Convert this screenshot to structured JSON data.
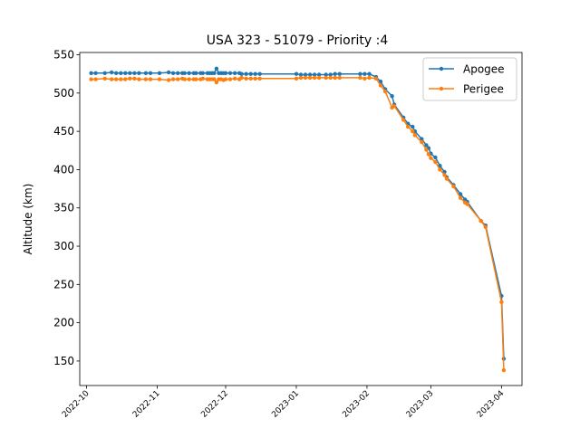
{
  "chart_data": {
    "type": "line",
    "title": "USA 323 - 51079 - Priority :4",
    "xlabel": "",
    "ylabel": "Altitude (km)",
    "xlim": [
      "2022-09-28",
      "2023-04-10"
    ],
    "ylim": [
      118,
      553
    ],
    "x_ticks": [
      "2022-10-01",
      "2022-11-01",
      "2022-12-01",
      "2023-01-01",
      "2023-02-01",
      "2023-03-01",
      "2023-04-01"
    ],
    "x_tick_labels": [
      "2022-10",
      "2022-11",
      "2022-12",
      "2023-01",
      "2023-02",
      "2023-03",
      "2023-04"
    ],
    "y_ticks": [
      150,
      200,
      250,
      300,
      350,
      400,
      450,
      500,
      550
    ],
    "y_tick_labels": [
      "150",
      "200",
      "250",
      "300",
      "350",
      "400",
      "450",
      "500",
      "550"
    ],
    "grid": false,
    "legend_position": "top-right",
    "series": [
      {
        "name": "Apogee",
        "color": "#1f77b4",
        "points": [
          [
            "2022-10-03",
            526
          ],
          [
            "2022-10-05",
            526
          ],
          [
            "2022-10-09",
            526
          ],
          [
            "2022-10-12",
            527
          ],
          [
            "2022-10-14",
            526
          ],
          [
            "2022-10-16",
            526
          ],
          [
            "2022-10-18",
            526
          ],
          [
            "2022-10-20",
            526
          ],
          [
            "2022-10-22",
            526
          ],
          [
            "2022-10-24",
            526
          ],
          [
            "2022-10-27",
            526
          ],
          [
            "2022-10-29",
            526
          ],
          [
            "2022-11-02",
            526
          ],
          [
            "2022-11-06",
            527
          ],
          [
            "2022-11-08",
            526
          ],
          [
            "2022-11-10",
            526
          ],
          [
            "2022-11-12",
            526
          ],
          [
            "2022-11-13",
            526
          ],
          [
            "2022-11-15",
            526
          ],
          [
            "2022-11-17",
            526
          ],
          [
            "2022-11-18",
            526
          ],
          [
            "2022-11-20",
            526
          ],
          [
            "2022-11-21",
            526
          ],
          [
            "2022-11-23",
            526
          ],
          [
            "2022-11-24",
            526
          ],
          [
            "2022-11-25",
            526
          ],
          [
            "2022-11-26",
            526
          ],
          [
            "2022-11-27",
            532
          ],
          [
            "2022-11-28",
            526
          ],
          [
            "2022-11-29",
            526
          ],
          [
            "2022-11-30",
            526
          ],
          [
            "2022-12-01",
            526
          ],
          [
            "2022-12-03",
            526
          ],
          [
            "2022-12-05",
            526
          ],
          [
            "2022-12-07",
            526
          ],
          [
            "2022-12-08",
            525
          ],
          [
            "2022-12-10",
            525
          ],
          [
            "2022-12-12",
            525
          ],
          [
            "2022-12-14",
            525
          ],
          [
            "2022-12-16",
            525
          ],
          [
            "2023-01-01",
            525
          ],
          [
            "2023-01-03",
            524
          ],
          [
            "2023-01-05",
            524
          ],
          [
            "2023-01-07",
            524
          ],
          [
            "2023-01-09",
            524
          ],
          [
            "2023-01-11",
            524
          ],
          [
            "2023-01-14",
            524
          ],
          [
            "2023-01-16",
            524
          ],
          [
            "2023-01-18",
            525
          ],
          [
            "2023-01-20",
            525
          ],
          [
            "2023-01-29",
            525
          ],
          [
            "2023-01-31",
            525
          ],
          [
            "2023-02-02",
            525
          ],
          [
            "2023-02-05",
            521
          ],
          [
            "2023-02-07",
            515
          ],
          [
            "2023-02-09",
            505
          ],
          [
            "2023-02-12",
            496
          ],
          [
            "2023-02-13",
            485
          ],
          [
            "2023-02-17",
            468
          ],
          [
            "2023-02-19",
            460
          ],
          [
            "2023-02-21",
            456
          ],
          [
            "2023-02-22",
            450
          ],
          [
            "2023-02-25",
            440
          ],
          [
            "2023-02-27",
            432
          ],
          [
            "2023-02-28",
            428
          ],
          [
            "2023-03-01",
            421
          ],
          [
            "2023-03-03",
            416
          ],
          [
            "2023-03-05",
            405
          ],
          [
            "2023-03-07",
            397
          ],
          [
            "2023-03-08",
            390
          ],
          [
            "2023-03-11",
            380
          ],
          [
            "2023-03-14",
            368
          ],
          [
            "2023-03-16",
            361
          ],
          [
            "2023-03-17",
            358
          ],
          [
            "2023-03-23",
            333
          ],
          [
            "2023-03-25",
            327
          ],
          [
            "2023-04-01",
            235
          ],
          [
            "2023-04-02",
            153
          ]
        ]
      },
      {
        "name": "Perigee",
        "color": "#ff7f0e",
        "points": [
          [
            "2022-10-03",
            518
          ],
          [
            "2022-10-05",
            518
          ],
          [
            "2022-10-09",
            519
          ],
          [
            "2022-10-12",
            518
          ],
          [
            "2022-10-14",
            518
          ],
          [
            "2022-10-16",
            518
          ],
          [
            "2022-10-18",
            518
          ],
          [
            "2022-10-20",
            519
          ],
          [
            "2022-10-22",
            519
          ],
          [
            "2022-10-24",
            518
          ],
          [
            "2022-10-27",
            518
          ],
          [
            "2022-10-29",
            518
          ],
          [
            "2022-11-02",
            518
          ],
          [
            "2022-11-06",
            517
          ],
          [
            "2022-11-08",
            518
          ],
          [
            "2022-11-10",
            518
          ],
          [
            "2022-11-12",
            519
          ],
          [
            "2022-11-13",
            518
          ],
          [
            "2022-11-15",
            518
          ],
          [
            "2022-11-17",
            518
          ],
          [
            "2022-11-18",
            518
          ],
          [
            "2022-11-20",
            518
          ],
          [
            "2022-11-21",
            519
          ],
          [
            "2022-11-23",
            518
          ],
          [
            "2022-11-24",
            518
          ],
          [
            "2022-11-25",
            518
          ],
          [
            "2022-11-26",
            518
          ],
          [
            "2022-11-27",
            514
          ],
          [
            "2022-11-28",
            518
          ],
          [
            "2022-11-29",
            518
          ],
          [
            "2022-11-30",
            517
          ],
          [
            "2022-12-01",
            518
          ],
          [
            "2022-12-03",
            518
          ],
          [
            "2022-12-05",
            519
          ],
          [
            "2022-12-07",
            518
          ],
          [
            "2022-12-08",
            520
          ],
          [
            "2022-12-10",
            519
          ],
          [
            "2022-12-12",
            519
          ],
          [
            "2022-12-14",
            519
          ],
          [
            "2022-12-16",
            519
          ],
          [
            "2023-01-01",
            519
          ],
          [
            "2023-01-03",
            520
          ],
          [
            "2023-01-05",
            520
          ],
          [
            "2023-01-07",
            520
          ],
          [
            "2023-01-09",
            520
          ],
          [
            "2023-01-11",
            520
          ],
          [
            "2023-01-14",
            520
          ],
          [
            "2023-01-16",
            520
          ],
          [
            "2023-01-18",
            520
          ],
          [
            "2023-01-20",
            520
          ],
          [
            "2023-01-29",
            520
          ],
          [
            "2023-01-31",
            519
          ],
          [
            "2023-02-02",
            520
          ],
          [
            "2023-02-05",
            519
          ],
          [
            "2023-02-07",
            510
          ],
          [
            "2023-02-09",
            502
          ],
          [
            "2023-02-12",
            481
          ],
          [
            "2023-02-13",
            483
          ],
          [
            "2023-02-17",
            465
          ],
          [
            "2023-02-19",
            456
          ],
          [
            "2023-02-21",
            450
          ],
          [
            "2023-02-22",
            445
          ],
          [
            "2023-02-25",
            436
          ],
          [
            "2023-02-27",
            426
          ],
          [
            "2023-02-28",
            420
          ],
          [
            "2023-03-01",
            415
          ],
          [
            "2023-03-03",
            410
          ],
          [
            "2023-03-05",
            400
          ],
          [
            "2023-03-07",
            393
          ],
          [
            "2023-03-08",
            388
          ],
          [
            "2023-03-11",
            378
          ],
          [
            "2023-03-14",
            363
          ],
          [
            "2023-03-16",
            357
          ],
          [
            "2023-03-17",
            355
          ],
          [
            "2023-03-23",
            333
          ],
          [
            "2023-03-25",
            325
          ],
          [
            "2023-04-01",
            227
          ],
          [
            "2023-04-02",
            138
          ]
        ]
      }
    ]
  }
}
